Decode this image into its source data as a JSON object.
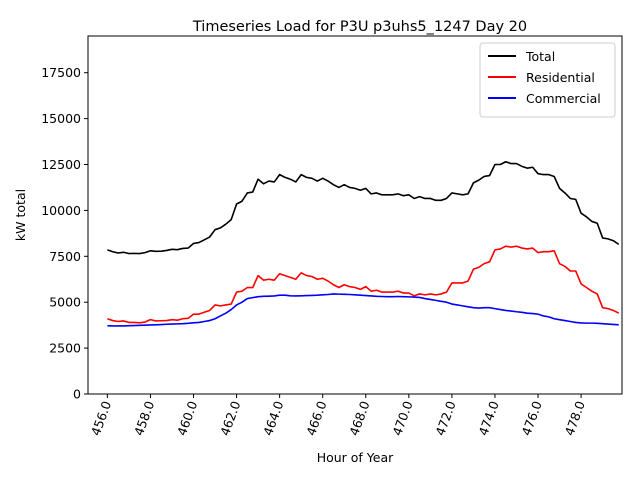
{
  "chart_data": {
    "type": "line",
    "title": "Timeseries Load for P3U p3uhs5_1247  Day 20",
    "xlabel": "Hour of Year",
    "ylabel": "kW total",
    "xlim": [
      455.1,
      479.9
    ],
    "ylim": [
      0,
      19500
    ],
    "x_ticks": [
      456.0,
      458.0,
      460.0,
      462.0,
      464.0,
      466.0,
      468.0,
      470.0,
      472.0,
      474.0,
      476.0,
      478.0
    ],
    "x_tick_labels": [
      "456.0",
      "458.0",
      "460.0",
      "462.0",
      "464.0",
      "466.0",
      "468.0",
      "470.0",
      "472.0",
      "474.0",
      "476.0",
      "478.0"
    ],
    "y_ticks": [
      0,
      2500,
      5000,
      7500,
      10000,
      12500,
      15000,
      17500
    ],
    "y_tick_labels": [
      "0",
      "2500",
      "5000",
      "7500",
      "10000",
      "12500",
      "15000",
      "17500"
    ],
    "legend_position": "top-right",
    "x": [
      456.0,
      456.25,
      456.5,
      456.75,
      457.0,
      457.25,
      457.5,
      457.75,
      458.0,
      458.25,
      458.5,
      458.75,
      459.0,
      459.25,
      459.5,
      459.75,
      460.0,
      460.25,
      460.5,
      460.75,
      461.0,
      461.25,
      461.5,
      461.75,
      462.0,
      462.25,
      462.5,
      462.75,
      463.0,
      463.25,
      463.5,
      463.75,
      464.0,
      464.25,
      464.5,
      464.75,
      465.0,
      465.25,
      465.5,
      465.75,
      466.0,
      466.25,
      466.5,
      466.75,
      467.0,
      467.25,
      467.5,
      467.75,
      468.0,
      468.25,
      468.5,
      468.75,
      469.0,
      469.25,
      469.5,
      469.75,
      470.0,
      470.25,
      470.5,
      470.75,
      471.0,
      471.25,
      471.5,
      471.75,
      472.0,
      472.25,
      472.5,
      472.75,
      473.0,
      473.25,
      473.5,
      473.75,
      474.0,
      474.25,
      474.5,
      474.75,
      475.0,
      475.25,
      475.5,
      475.75,
      476.0,
      476.25,
      476.5,
      476.75,
      477.0,
      477.25,
      477.5,
      477.75,
      478.0,
      478.25,
      478.5,
      478.75,
      479.0,
      479.25,
      479.5,
      479.75
    ],
    "series": [
      {
        "name": "Total",
        "color": "#000000",
        "values": [
          7850,
          7750,
          7680,
          7720,
          7650,
          7660,
          7650,
          7700,
          7800,
          7770,
          7780,
          7820,
          7880,
          7860,
          7930,
          7950,
          8200,
          8250,
          8400,
          8550,
          8950,
          9050,
          9250,
          9500,
          10350,
          10500,
          10950,
          11000,
          11700,
          11450,
          11600,
          11550,
          11950,
          11800,
          11700,
          11550,
          11950,
          11800,
          11750,
          11600,
          11750,
          11600,
          11400,
          11250,
          11400,
          11250,
          11200,
          11100,
          11200,
          10900,
          10950,
          10850,
          10850,
          10850,
          10900,
          10800,
          10850,
          10650,
          10750,
          10650,
          10650,
          10550,
          10550,
          10650,
          10950,
          10900,
          10850,
          10900,
          11500,
          11650,
          11850,
          11900,
          12500,
          12500,
          12650,
          12550,
          12550,
          12400,
          12300,
          12350,
          12000,
          11950,
          11950,
          11850,
          11200,
          10950,
          10650,
          10600,
          9850,
          9650,
          9400,
          9300,
          8500,
          8450,
          8350,
          8150
        ]
      },
      {
        "name": "Residential",
        "color": "#ff0000",
        "values": [
          4100,
          4000,
          3950,
          3980,
          3900,
          3900,
          3880,
          3920,
          4050,
          3980,
          3990,
          4000,
          4050,
          4020,
          4100,
          4120,
          4350,
          4350,
          4450,
          4550,
          4850,
          4800,
          4850,
          4900,
          5550,
          5600,
          5800,
          5800,
          6450,
          6200,
          6250,
          6200,
          6550,
          6450,
          6350,
          6250,
          6600,
          6450,
          6400,
          6250,
          6300,
          6150,
          5950,
          5800,
          5950,
          5850,
          5800,
          5700,
          5850,
          5600,
          5650,
          5550,
          5550,
          5550,
          5600,
          5500,
          5500,
          5350,
          5450,
          5400,
          5450,
          5400,
          5450,
          5550,
          6050,
          6050,
          6050,
          6150,
          6800,
          6900,
          7100,
          7200,
          7850,
          7900,
          8050,
          8000,
          8050,
          7950,
          7900,
          7950,
          7700,
          7750,
          7750,
          7800,
          7100,
          6950,
          6700,
          6700,
          6000,
          5800,
          5600,
          5450,
          4700,
          4650,
          4550,
          4400
        ]
      },
      {
        "name": "Commercial",
        "color": "#0000ff",
        "values": [
          3720,
          3710,
          3710,
          3710,
          3720,
          3730,
          3740,
          3750,
          3760,
          3770,
          3780,
          3800,
          3810,
          3820,
          3830,
          3850,
          3880,
          3900,
          3950,
          4000,
          4100,
          4250,
          4400,
          4600,
          4850,
          5000,
          5200,
          5250,
          5300,
          5320,
          5330,
          5340,
          5380,
          5380,
          5350,
          5340,
          5350,
          5360,
          5370,
          5380,
          5400,
          5420,
          5450,
          5440,
          5430,
          5420,
          5400,
          5380,
          5360,
          5340,
          5320,
          5310,
          5300,
          5300,
          5310,
          5300,
          5290,
          5280,
          5260,
          5200,
          5150,
          5100,
          5050,
          5000,
          4900,
          4850,
          4800,
          4750,
          4700,
          4680,
          4700,
          4700,
          4650,
          4600,
          4550,
          4520,
          4480,
          4450,
          4400,
          4380,
          4350,
          4250,
          4200,
          4100,
          4050,
          4000,
          3950,
          3900,
          3870,
          3860,
          3860,
          3850,
          3830,
          3810,
          3790,
          3770
        ]
      }
    ]
  }
}
